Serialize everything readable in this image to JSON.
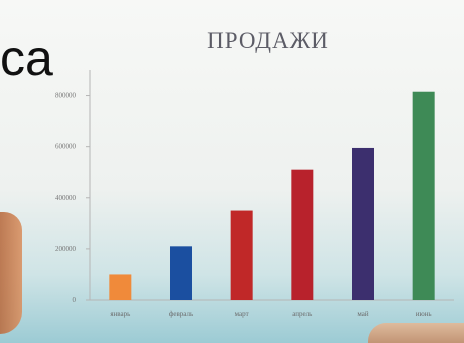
{
  "fragment_text": "ca",
  "chart_data": {
    "type": "bar",
    "title": "ПРОДАЖИ",
    "categories": [
      "январь",
      "февраль",
      "март",
      "апрель",
      "май",
      "июнь"
    ],
    "values": [
      100000,
      210000,
      350000,
      510000,
      595000,
      815000
    ],
    "colors": [
      "#f08a3a",
      "#1b4fa0",
      "#c02828",
      "#b8222c",
      "#3c2f6e",
      "#3e8a56"
    ],
    "yticks": [
      0,
      200000,
      400000,
      600000,
      800000
    ],
    "ylim": [
      0,
      900000
    ],
    "xlabel": "",
    "ylabel": "",
    "grid": false
  }
}
